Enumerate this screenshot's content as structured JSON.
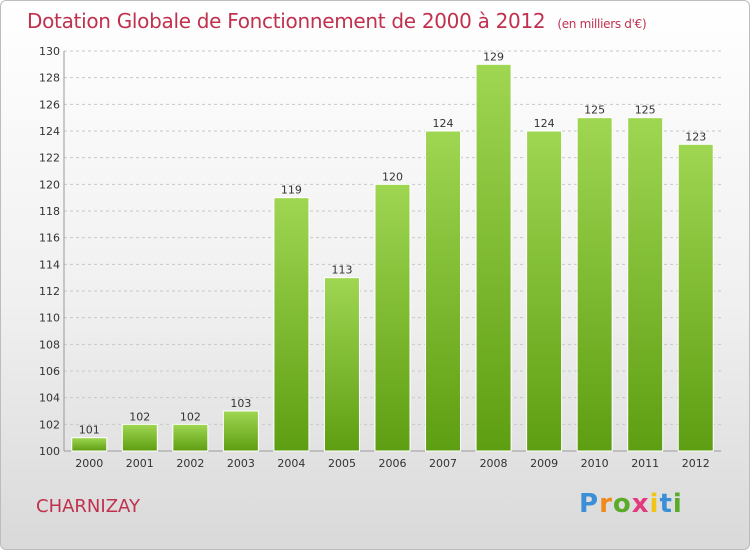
{
  "chart_data": {
    "type": "bar",
    "title": "Dotation Globale de Fonctionnement de 2000 à 2012",
    "subtitle": "(en milliers d'€)",
    "categories": [
      "2000",
      "2001",
      "2002",
      "2003",
      "2004",
      "2005",
      "2006",
      "2007",
      "2008",
      "2009",
      "2010",
      "2011",
      "2012"
    ],
    "values": [
      101,
      102,
      102,
      103,
      119,
      113,
      120,
      124,
      129,
      124,
      125,
      125,
      123
    ],
    "ylim": [
      100,
      130
    ],
    "yticks": [
      100,
      102,
      104,
      106,
      108,
      110,
      112,
      114,
      116,
      118,
      120,
      122,
      124,
      126,
      128,
      130
    ],
    "grid": true,
    "colors": {
      "bar_light": "#9fd652",
      "bar_dark": "#5e9e12",
      "title": "#c0314e"
    }
  },
  "commune": "CHARNIZAY",
  "logo": {
    "letters": [
      "P",
      "r",
      "o",
      "x",
      "i",
      "t",
      "i"
    ],
    "colors": [
      "#3a8fd6",
      "#f08a1c",
      "#5aab2a",
      "#e23a7d",
      "#f0c419",
      "#3a8fd6",
      "#5aab2a"
    ]
  }
}
